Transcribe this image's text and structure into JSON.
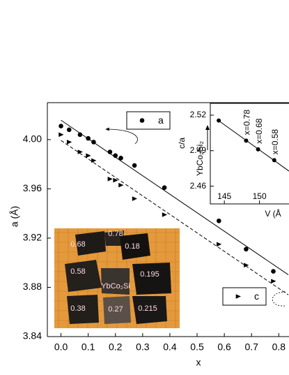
{
  "chart_data": [
    {
      "type": "scatter",
      "xlabel": "x",
      "ylabel": "a (Å)",
      "x": [
        0,
        0.03,
        0.07,
        0.1,
        0.12,
        0.18,
        0.2,
        0.22,
        0.27,
        0.38,
        0.58,
        0.68,
        0.78
      ],
      "series": [
        {
          "name": "a",
          "color": "#000000",
          "marker": "circle",
          "fit_line": "solid",
          "values": [
            4.011,
            4.008,
            4.004,
            4.001,
            3.998,
            3.99,
            3.987,
            3.985,
            3.979,
            3.961,
            3.934,
            3.911,
            3.893
          ]
        },
        {
          "name": "c",
          "color": "#000000",
          "marker": "triangle-right",
          "fit_line": "dashed",
          "values": [
            4.004,
            3.998,
            3.99,
            3.987,
            3.983,
            3.968,
            3.967,
            3.963,
            3.952,
            3.939,
            3.915,
            3.898,
            3.885
          ]
        }
      ],
      "xlim": [
        -0.05,
        0.835
      ],
      "ylim": [
        3.84,
        4.03
      ],
      "xticks": [
        {
          "value": 0,
          "label": "0.0"
        },
        0.1,
        0.2,
        0.3,
        0.4,
        0.5,
        0.6,
        0.7,
        0.8
      ],
      "yticks": [
        {
          "value": 3.84,
          "label": "3.84"
        },
        3.88,
        3.92,
        3.96,
        {
          "value": 4,
          "label": "4.00"
        }
      ],
      "annotations": [
        "0.78",
        "0.68",
        "0.18",
        "0.58",
        "0.195",
        "YbCo₂Si",
        "0.38",
        "0.27",
        "0.215"
      ]
    },
    {
      "type": "scatter",
      "xlabel": "V (Å",
      "ylabel": "c/a",
      "x": [
        144.2,
        148.1,
        149.8,
        152.1
      ],
      "series": [
        {
          "name": "c/a",
          "color": "#000000",
          "marker": "circle",
          "fit_line": "solid",
          "values": [
            2.5155,
            2.4985,
            2.4911,
            2.482
          ]
        }
      ],
      "xlim": [
        143,
        154.2
      ],
      "ylim": [
        2.445,
        2.53
      ],
      "xticks": [
        145,
        150
      ],
      "yticks": [
        2.46,
        2.49,
        2.52
      ],
      "annotations": [
        "x=0.78",
        "x=0.68",
        "x=0.58",
        "YbCo₂Si₂"
      ]
    }
  ]
}
